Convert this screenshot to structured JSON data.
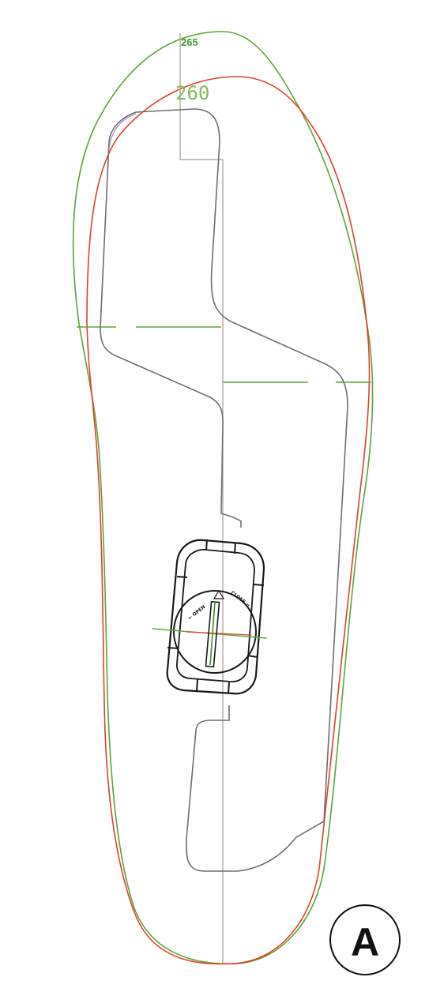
{
  "labels": {
    "size_outer": "265",
    "size_inner": "260",
    "panel_letter": "A",
    "dial_left": "← OPEN",
    "dial_right": "CLOSE →"
  },
  "colors": {
    "outer_outline": "#5aa53a",
    "inner_outline": "#e0412b",
    "cutout": "#6f6f6f",
    "axis": "#a89a92",
    "dial": "#1a1a1a",
    "size_label_outer": "#3f9b2e",
    "size_label_inner": "#7cbf5c",
    "panel_badge": "#111111"
  }
}
